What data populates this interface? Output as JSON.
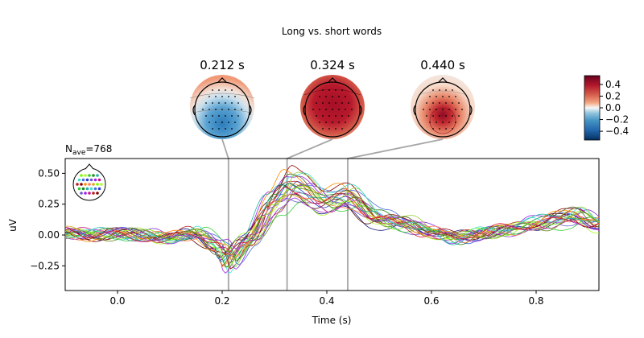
{
  "chart_data": {
    "type": "line",
    "title": "Long vs. short words",
    "nave_label": "N",
    "nave_sub": "ave",
    "nave_value": "=768",
    "xlabel": "Time (s)",
    "ylabel": "uV",
    "xlim": [
      -0.1,
      0.92
    ],
    "ylim": [
      -0.45,
      0.62
    ],
    "xticks": [
      0.0,
      0.2,
      0.4,
      0.6,
      0.8
    ],
    "xtick_labels": [
      "0.0",
      "0.2",
      "0.4",
      "0.6",
      "0.8"
    ],
    "yticks": [
      -0.25,
      0.0,
      0.25,
      0.5
    ],
    "ytick_labels": [
      "−0.25",
      "0.00",
      "0.25",
      "0.50"
    ],
    "grid": false,
    "legend": "sensor layout inset at top-left",
    "topomap_times": [
      0.212,
      0.324,
      0.44
    ],
    "topomaps": [
      {
        "label": "0.212 s",
        "pattern": "frontal positive, central-posterior negative"
      },
      {
        "label": "0.324 s",
        "pattern": "widespread positive"
      },
      {
        "label": "0.440 s",
        "pattern": "posterior-central positive"
      }
    ],
    "colorbar": {
      "colormap": "RdBu_r",
      "range": [
        -0.55,
        0.55
      ],
      "ticks": [
        "0.4",
        "0.2",
        "0.0",
        "−0.2",
        "−0.4"
      ]
    },
    "series_template": {
      "x": [
        -0.1,
        -0.05,
        0.0,
        0.05,
        0.1,
        0.15,
        0.2,
        0.212,
        0.25,
        0.3,
        0.33,
        0.35,
        0.4,
        0.44,
        0.5,
        0.55,
        0.6,
        0.65,
        0.7,
        0.75,
        0.8,
        0.85,
        0.88,
        0.92
      ],
      "y": [
        0.02,
        0.0,
        0.01,
        0.0,
        -0.03,
        0.02,
        -0.12,
        -0.25,
        -0.05,
        0.3,
        0.45,
        0.43,
        0.3,
        0.35,
        0.15,
        0.1,
        0.03,
        -0.03,
        0.02,
        0.05,
        0.1,
        0.15,
        0.18,
        0.1
      ]
    },
    "series_count": 24,
    "series_colors": [
      "#1a1a80",
      "#2b3fd6",
      "#4b6fe0",
      "#6a5acd",
      "#8a2be2",
      "#a020f0",
      "#c71585",
      "#b22222",
      "#8b0000",
      "#5b0f0f",
      "#228b22",
      "#32cd32",
      "#7cfc00",
      "#9acd32",
      "#adff2f",
      "#daa520",
      "#ff8c00",
      "#ff7f50",
      "#20b2aa",
      "#40e0d0",
      "#6b8e23",
      "#556b2f",
      "#9932cc",
      "#dc143c"
    ]
  }
}
